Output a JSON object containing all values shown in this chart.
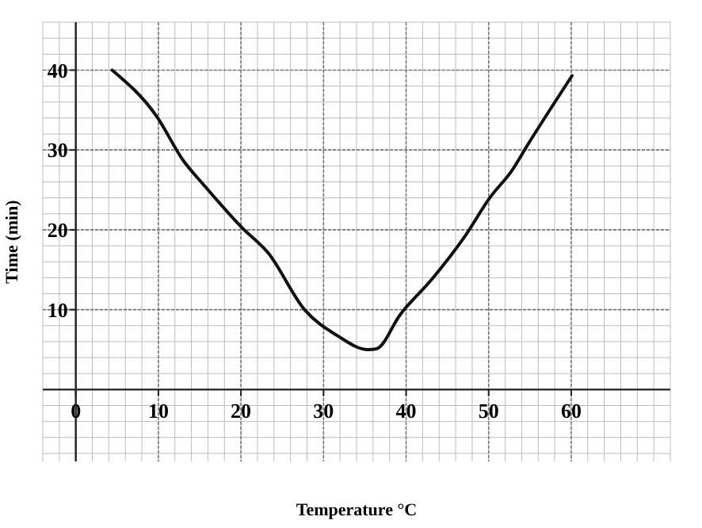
{
  "chart_data": {
    "type": "line",
    "xlabel": "Temperature °C",
    "ylabel": "Time (min)",
    "xlim": [
      -4,
      72
    ],
    "ylim": [
      -9,
      46
    ],
    "xticks": [
      0,
      10,
      20,
      30,
      40,
      50,
      60
    ],
    "yticks": [
      10,
      20,
      30,
      40
    ],
    "grid": true,
    "marker": "none",
    "line_style": "solid",
    "series": [
      {
        "color": "#111111",
        "x": [
          4.4,
          9.8,
          13,
          15.6,
          20.1,
          23.3,
          27.7,
          31.6,
          35.4,
          36.4,
          39.3,
          43.2,
          47,
          50.2,
          52.8,
          54.7,
          60.1
        ],
        "values": [
          40,
          34.2,
          28.7,
          25.5,
          20.3,
          17.1,
          10,
          6.8,
          5,
          5.1,
          9.4,
          13.9,
          19,
          24.1,
          27.4,
          30.6,
          39.3
        ]
      }
    ]
  }
}
